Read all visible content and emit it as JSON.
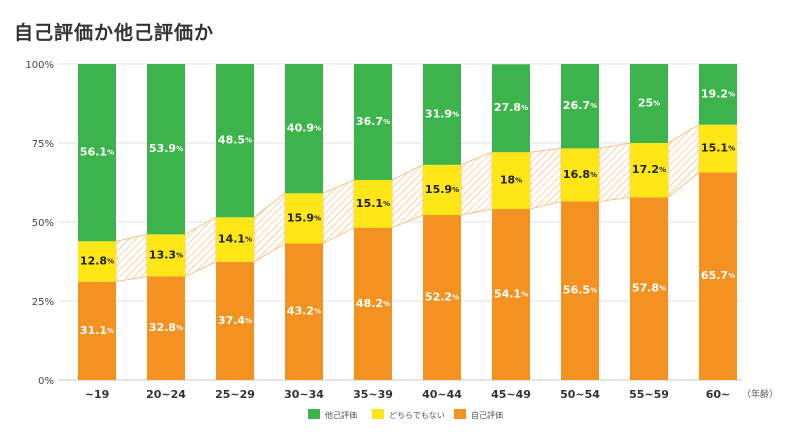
{
  "title": "自己評価か他己評価か",
  "chart_data": {
    "type": "bar",
    "stacked": true,
    "percent_stacked": true,
    "title": "自己評価か他己評価か",
    "xlabel": "（年齢）",
    "ylabel": "",
    "ylim": [
      0,
      100
    ],
    "yticks": [
      "0%",
      "25%",
      "50%",
      "75%",
      "100%"
    ],
    "grid": true,
    "legend_position": "bottom",
    "categories": [
      "~19",
      "20~24",
      "25~29",
      "30~34",
      "35~39",
      "40~44",
      "45~49",
      "50~54",
      "55~59",
      "60~"
    ],
    "series": [
      {
        "name": "自己評価",
        "color": "#F39220",
        "values": [
          31.1,
          32.8,
          37.4,
          43.2,
          48.2,
          52.2,
          54.1,
          56.5,
          57.8,
          65.7
        ]
      },
      {
        "name": "どちらでもない",
        "color": "#FFE617",
        "values": [
          12.8,
          13.3,
          14.1,
          15.9,
          15.1,
          15.9,
          18,
          16.8,
          17.2,
          15.1
        ]
      },
      {
        "name": "他己評価",
        "color": "#3CB44B",
        "values": [
          56.1,
          53.9,
          48.5,
          40.9,
          36.7,
          31.9,
          27.8,
          26.7,
          25,
          19.2
        ]
      }
    ],
    "legend_order": [
      "他己評価",
      "どちらでもない",
      "自己評価"
    ]
  }
}
